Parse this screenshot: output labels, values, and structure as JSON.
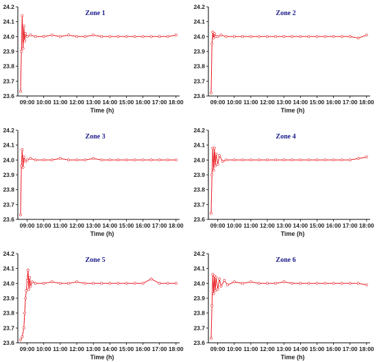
{
  "chart_data": [
    {
      "type": "line",
      "title": "Zone 1",
      "xlabel": "Time (h)",
      "ylabel": "",
      "ylim": [
        23.6,
        24.2
      ],
      "y_ticks": [
        "23.6",
        "23.7",
        "23.8",
        "23.9",
        "24.0",
        "24.1",
        "24.2"
      ],
      "x_ticks": [
        "09:00",
        "10:00",
        "11:00",
        "12:00",
        "13:00",
        "14:00",
        "15:00",
        "16:00",
        "17:00",
        "18:00"
      ],
      "x_range_hours": [
        8.6,
        18.05
      ],
      "grid": false,
      "series_color": "#e8141b",
      "series": [
        {
          "x": [
            8.6,
            8.65,
            8.7,
            8.75,
            8.8,
            8.85,
            8.9,
            9.0,
            9.2,
            9.5,
            10.0,
            10.5,
            11.0,
            11.5,
            12.0,
            12.5,
            13.0,
            13.5,
            14.0,
            14.5,
            15.0,
            15.5,
            16.0,
            16.5,
            17.0,
            17.5,
            18.0
          ],
          "y": [
            23.63,
            23.9,
            24.14,
            23.92,
            24.07,
            23.97,
            24.02,
            24.0,
            24.01,
            24.0,
            24.0,
            24.01,
            24.0,
            24.01,
            24.0,
            24.0,
            24.01,
            24.0,
            24.0,
            24.0,
            24.0,
            24.0,
            24.0,
            24.0,
            24.0,
            24.0,
            24.01
          ]
        }
      ]
    },
    {
      "type": "line",
      "title": "Zone 2",
      "xlabel": "Time (h)",
      "ylabel": "",
      "ylim": [
        23.6,
        24.2
      ],
      "y_ticks": [
        "23.6",
        "23.7",
        "23.8",
        "23.9",
        "24.0",
        "24.1",
        "24.2"
      ],
      "x_ticks": [
        "09:00",
        "10:00",
        "11:00",
        "12:00",
        "13:00",
        "14:00",
        "15:00",
        "16:00",
        "17:00",
        "18:00"
      ],
      "x_range_hours": [
        8.6,
        18.05
      ],
      "grid": false,
      "series_color": "#e8141b",
      "series": [
        {
          "x": [
            8.6,
            8.65,
            8.7,
            8.75,
            8.8,
            8.9,
            9.0,
            9.2,
            9.5,
            10.0,
            10.5,
            11.0,
            11.5,
            12.0,
            12.5,
            13.0,
            13.5,
            14.0,
            14.5,
            15.0,
            15.5,
            16.0,
            16.5,
            17.0,
            17.5,
            18.0
          ],
          "y": [
            23.62,
            23.95,
            24.03,
            23.99,
            24.02,
            24.0,
            24.0,
            24.01,
            24.0,
            24.0,
            24.0,
            24.0,
            24.0,
            24.0,
            24.0,
            24.0,
            24.0,
            24.0,
            24.0,
            24.0,
            24.0,
            24.0,
            24.0,
            24.0,
            23.99,
            24.01
          ]
        }
      ]
    },
    {
      "type": "line",
      "title": "Zone 3",
      "xlabel": "Time (h)",
      "ylabel": "",
      "ylim": [
        23.6,
        24.2
      ],
      "y_ticks": [
        "23.6",
        "23.7",
        "23.8",
        "23.9",
        "24.0",
        "24.1",
        "24.2"
      ],
      "x_ticks": [
        "09:00",
        "10:00",
        "11:00",
        "12:00",
        "13:00",
        "14:00",
        "15:00",
        "16:00",
        "17:00",
        "18:00"
      ],
      "x_range_hours": [
        8.6,
        18.05
      ],
      "grid": false,
      "series_color": "#e8141b",
      "series": [
        {
          "x": [
            8.6,
            8.65,
            8.7,
            8.75,
            8.8,
            8.9,
            9.0,
            9.2,
            9.5,
            10.0,
            10.5,
            11.0,
            11.5,
            12.0,
            12.5,
            13.0,
            13.5,
            14.0,
            14.5,
            15.0,
            15.5,
            16.0,
            16.5,
            17.0,
            17.5,
            18.0
          ],
          "y": [
            23.63,
            23.96,
            24.07,
            23.95,
            24.02,
            23.99,
            24.0,
            24.01,
            24.0,
            24.0,
            24.0,
            24.01,
            24.0,
            24.0,
            24.0,
            24.01,
            24.0,
            24.0,
            24.0,
            24.0,
            24.0,
            24.0,
            24.0,
            24.0,
            24.0,
            24.0
          ]
        }
      ]
    },
    {
      "type": "line",
      "title": "Zone 4",
      "xlabel": "Time (h)",
      "ylabel": "",
      "ylim": [
        23.6,
        24.2
      ],
      "y_ticks": [
        "23.6",
        "23.7",
        "23.8",
        "23.9",
        "24.0",
        "24.1",
        "24.2"
      ],
      "x_ticks": [
        "09:00",
        "10:00",
        "11:00",
        "12:00",
        "13:00",
        "14:00",
        "15:00",
        "16:00",
        "17:00",
        "18:00"
      ],
      "x_range_hours": [
        8.6,
        18.05
      ],
      "grid": false,
      "series_color": "#e8141b",
      "series": [
        {
          "x": [
            8.6,
            8.65,
            8.7,
            8.75,
            8.8,
            8.85,
            8.9,
            9.0,
            9.1,
            9.3,
            9.5,
            10.0,
            10.5,
            11.0,
            11.5,
            12.0,
            12.5,
            13.0,
            13.5,
            14.0,
            14.5,
            15.0,
            15.5,
            16.0,
            16.5,
            17.0,
            17.5,
            18.0
          ],
          "y": [
            23.64,
            23.9,
            24.08,
            23.93,
            24.08,
            23.96,
            24.04,
            23.97,
            24.03,
            23.99,
            24.0,
            24.0,
            24.0,
            24.0,
            24.0,
            24.0,
            24.0,
            24.0,
            24.0,
            24.0,
            24.0,
            24.0,
            24.0,
            24.0,
            24.0,
            24.0,
            24.01,
            24.02
          ]
        }
      ]
    },
    {
      "type": "line",
      "title": "Zone 5",
      "xlabel": "Time (h)",
      "ylabel": "",
      "ylim": [
        23.6,
        24.2
      ],
      "y_ticks": [
        "23.6",
        "23.7",
        "23.8",
        "23.9",
        "24.0",
        "24.1",
        "24.2"
      ],
      "x_ticks": [
        "09:00",
        "10:00",
        "11:00",
        "12:00",
        "13:00",
        "14:00",
        "15:00",
        "16:00",
        "17:00",
        "18:00"
      ],
      "x_range_hours": [
        8.6,
        18.05
      ],
      "grid": false,
      "series_color": "#e8141b",
      "series": [
        {
          "x": [
            8.6,
            8.7,
            8.8,
            8.85,
            8.9,
            8.95,
            9.0,
            9.05,
            9.1,
            9.15,
            9.2,
            9.3,
            9.5,
            10.0,
            10.5,
            11.0,
            11.5,
            12.0,
            12.5,
            13.0,
            13.5,
            14.0,
            14.5,
            15.0,
            15.5,
            16.0,
            16.5,
            17.0,
            17.5,
            18.0
          ],
          "y": [
            23.62,
            23.64,
            23.7,
            23.8,
            23.9,
            23.95,
            24.02,
            24.09,
            23.96,
            24.04,
            23.98,
            24.01,
            24.0,
            24.0,
            24.01,
            24.0,
            24.0,
            24.01,
            24.0,
            24.0,
            24.0,
            24.0,
            24.0,
            24.0,
            24.0,
            24.0,
            24.03,
            24.0,
            24.0,
            24.0
          ]
        }
      ]
    },
    {
      "type": "line",
      "title": "Zone 6",
      "xlabel": "Time (h)",
      "ylabel": "",
      "ylim": [
        23.6,
        24.2
      ],
      "y_ticks": [
        "23.6",
        "23.7",
        "23.8",
        "23.9",
        "24.0",
        "24.1",
        "24.2"
      ],
      "x_ticks": [
        "09:00",
        "10:00",
        "11:00",
        "12:00",
        "13:00",
        "14:00",
        "15:00",
        "16:00",
        "17:00",
        "18:00"
      ],
      "x_range_hours": [
        8.6,
        18.05
      ],
      "grid": false,
      "series_color": "#e8141b",
      "series": [
        {
          "x": [
            8.6,
            8.65,
            8.7,
            8.75,
            8.8,
            8.85,
            8.9,
            9.0,
            9.1,
            9.2,
            9.4,
            9.6,
            10.0,
            10.5,
            11.0,
            11.5,
            12.0,
            12.5,
            13.0,
            13.5,
            14.0,
            14.5,
            15.0,
            15.5,
            16.0,
            16.5,
            17.0,
            17.5,
            18.0
          ],
          "y": [
            23.63,
            23.85,
            24.06,
            23.93,
            24.05,
            23.95,
            24.04,
            23.96,
            24.03,
            23.98,
            24.02,
            23.99,
            24.01,
            24.0,
            24.01,
            24.0,
            24.0,
            24.0,
            24.01,
            24.0,
            24.0,
            24.0,
            24.0,
            24.0,
            24.0,
            24.0,
            24.0,
            24.0,
            23.99
          ]
        }
      ]
    }
  ]
}
